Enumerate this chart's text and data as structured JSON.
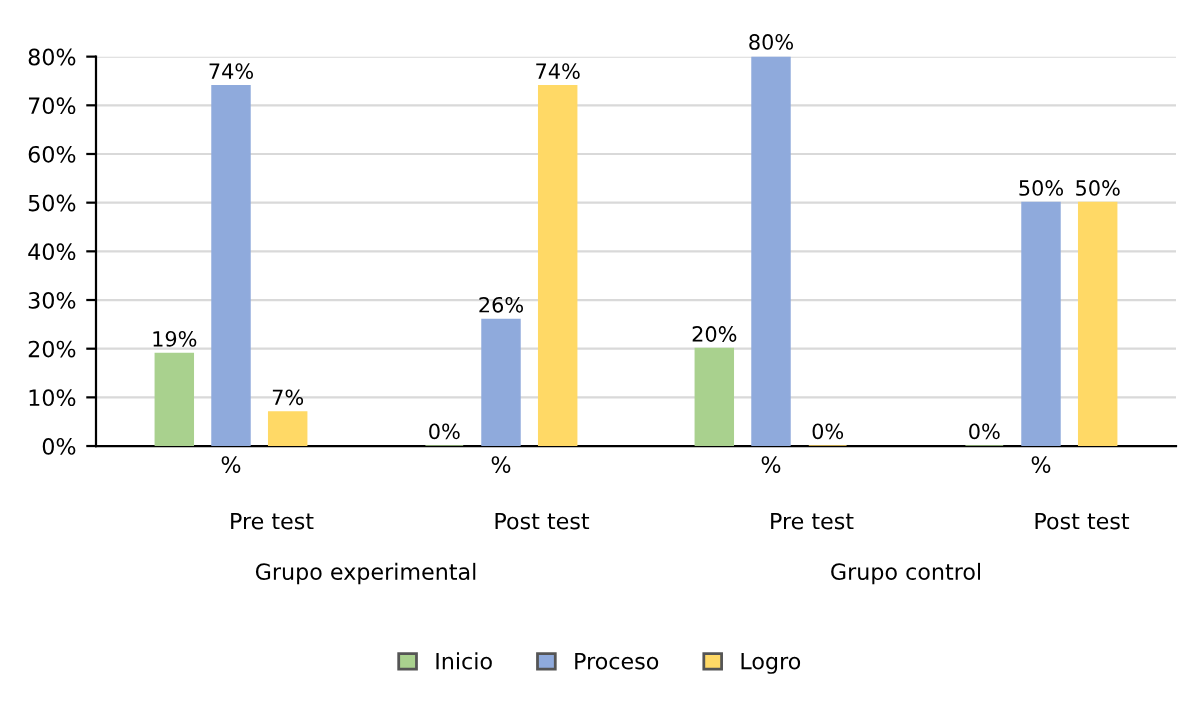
{
  "chart_data": {
    "type": "bar",
    "categories": [
      "%",
      "%",
      "%",
      "%"
    ],
    "series": [
      {
        "name": "Inicio",
        "color": "#a9d18e",
        "values": [
          19,
          0,
          20,
          0
        ],
        "value_labels": [
          "19%",
          "0%",
          "20%",
          "0%"
        ]
      },
      {
        "name": "Proceso",
        "color": "#8faadc",
        "values": [
          74,
          26,
          80,
          50
        ],
        "value_labels": [
          "74%",
          "26%",
          "80%",
          "50%"
        ]
      },
      {
        "name": "Logro",
        "color": "#ffd966",
        "values": [
          7,
          74,
          0,
          50
        ],
        "value_labels": [
          "7%",
          "74%",
          "0%",
          "50%"
        ]
      }
    ],
    "annotations": [
      "Pre test",
      "Post test",
      "Pre test",
      "Post test",
      "Grupo experimental",
      "Grupo control"
    ],
    "ylim": [
      0,
      80
    ],
    "yticks": [
      {
        "value": 0,
        "label": "0%"
      },
      {
        "value": 10,
        "label": "10%"
      },
      {
        "value": 20,
        "label": "20%"
      },
      {
        "value": 30,
        "label": "30%"
      },
      {
        "value": 40,
        "label": "40%"
      },
      {
        "value": 50,
        "label": "50%"
      },
      {
        "value": 60,
        "label": "60%"
      },
      {
        "value": 70,
        "label": "70%"
      },
      {
        "value": 80,
        "label": "80%"
      }
    ],
    "grid": "y",
    "legend": "bottom"
  }
}
